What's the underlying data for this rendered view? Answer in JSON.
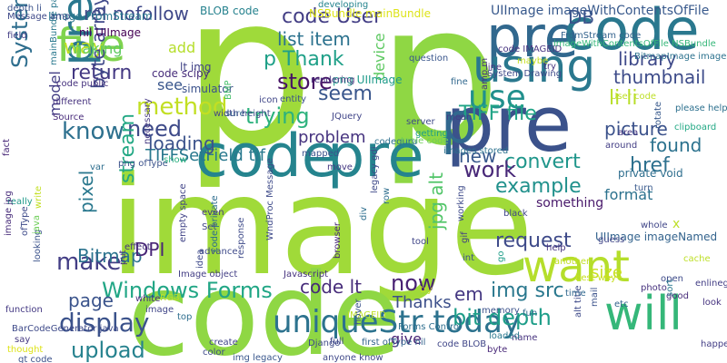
{
  "words": [
    {
      "text": "p",
      "color": "#9fda3a"
    },
    {
      "text": "p",
      "color": "#8fd744"
    },
    {
      "text": "image",
      "color": "#a0da39"
    },
    {
      "text": "code",
      "color": "#8fd744"
    },
    {
      "text": "code",
      "color": "#25848e"
    },
    {
      "text": "pre",
      "color": "#25848e"
    },
    {
      "text": "pre",
      "color": "#3b528b"
    },
    {
      "text": "pre",
      "color": "#31688e"
    },
    {
      "text": "p",
      "color": "#31688e"
    },
    {
      "text": "code",
      "color": "#2a788e"
    },
    {
      "text": "using",
      "color": "#2a788e"
    },
    {
      "text": "file",
      "color": "#7fd34e"
    },
    {
      "text": "want",
      "color": "#b5de2b"
    },
    {
      "text": "will",
      "color": "#35b779"
    },
    {
      "text": "prep",
      "color": "#2a788e"
    },
    {
      "text": "uniqueStr today",
      "color": "#2c728e"
    },
    {
      "text": "use",
      "color": "#21908d"
    },
    {
      "text": "display",
      "color": "#3b528b"
    },
    {
      "text": "Windows Forms",
      "color": "#21a685"
    },
    {
      "text": "upload",
      "color": "#26828e"
    },
    {
      "text": "method",
      "color": "#c2df23"
    },
    {
      "text": "trying",
      "color": "#2db27d"
    },
    {
      "text": "TIFF file",
      "color": "#20a486"
    },
    {
      "text": "make",
      "color": "#433e85"
    },
    {
      "text": "know",
      "color": "#2d708e"
    },
    {
      "text": "now",
      "color": "#482173"
    },
    {
      "text": "example",
      "color": "#21918c"
    },
    {
      "text": "need",
      "color": "#3e4a89"
    },
    {
      "text": "bit depth",
      "color": "#1f9e89"
    },
    {
      "text": "img src",
      "color": "#2a788e"
    },
    {
      "text": "code lt",
      "color": "#472c7a"
    },
    {
      "text": "request",
      "color": "#3e4a89"
    },
    {
      "text": "em",
      "color": "#453882"
    },
    {
      "text": "way",
      "color": "#c2df23"
    },
    {
      "text": "seem",
      "color": "#39568c"
    },
    {
      "text": "store",
      "color": "#471365"
    },
    {
      "text": "stream",
      "color": "#22a884"
    },
    {
      "text": "convert",
      "color": "#1f968b"
    },
    {
      "text": "list item",
      "color": "#2c728e"
    },
    {
      "text": "code User",
      "color": "#433e85"
    },
    {
      "text": "p Thank",
      "color": "#1fa088"
    },
    {
      "text": "return",
      "color": "#443983"
    },
    {
      "text": "System Windows",
      "color": "#2e6e8e"
    },
    {
      "text": "href",
      "color": "#2d708e"
    },
    {
      "text": "new",
      "color": "#38588c"
    },
    {
      "text": "work",
      "color": "#482878"
    },
    {
      "text": "found",
      "color": "#2c728e"
    },
    {
      "text": "li li",
      "color": "#b8de29"
    },
    {
      "text": "DB",
      "color": "#3b528b"
    },
    {
      "text": "library",
      "color": "#3e4989"
    },
    {
      "text": "thumbnail",
      "color": "#3e4c8a"
    },
    {
      "text": "picture",
      "color": "#3b528b"
    },
    {
      "text": "device",
      "color": "#5ec962"
    },
    {
      "text": "pixel",
      "color": "#2a788e"
    },
    {
      "text": "byte array",
      "color": "#3f4889"
    },
    {
      "text": "TIFFSetField tif",
      "color": "#29798e"
    },
    {
      "text": "loading",
      "color": "#3b528b"
    },
    {
      "text": "problem",
      "color": "#46337f"
    },
    {
      "text": "Bitmap",
      "color": "#2c738e"
    },
    {
      "text": "page",
      "color": "#3a538b"
    },
    {
      "text": "DPI",
      "color": "#482576"
    },
    {
      "text": "jpg alt",
      "color": "#52c569"
    },
    {
      "text": "Thanks",
      "color": "#3c4f8a"
    },
    {
      "text": "give",
      "color": "#482475"
    },
    {
      "text": "size",
      "color": "#c8e020"
    },
    {
      "text": "format",
      "color": "#2c728e"
    },
    {
      "text": "something",
      "color": "#48186a"
    },
    {
      "text": "making",
      "color": "#5ec962"
    },
    {
      "text": "add",
      "color": "#b5de2b"
    },
    {
      "text": "see",
      "color": "#39568c"
    },
    {
      "text": "model",
      "color": "#433e85"
    },
    {
      "text": "rel nofollow",
      "color": "#3f4889"
    },
    {
      "text": "x",
      "color": "#bddf26"
    },
    {
      "text": "UIImage imageWithContentsOfFile",
      "color": "#38598c"
    },
    {
      "text": "UIImage imageNamed",
      "color": "#33638d"
    },
    {
      "text": "private void",
      "color": "#2e6e8e"
    },
    {
      "text": "png UIImage",
      "color": "#1e9b8a"
    },
    {
      "text": "lt img",
      "color": "#414487"
    },
    {
      "text": "code scipy",
      "color": "#472d7b"
    },
    {
      "text": "simulator",
      "color": "#3b528b"
    },
    {
      "text": "Image FromStream",
      "color": "#2a778e"
    },
    {
      "text": "nil UIImage",
      "color": "#440154"
    },
    {
      "text": "BLOB code",
      "color": "#26828e"
    },
    {
      "text": "NSBundle mainBundle",
      "color": "#dde318"
    },
    {
      "text": "developing",
      "color": "#25848e"
    },
    {
      "text": "question",
      "color": "#39568c"
    },
    {
      "text": "code IMAGEID",
      "color": "#46337f"
    },
    {
      "text": "imageWithContentsOfFile NSBundle",
      "color": "#35b779"
    },
    {
      "text": "FromStream code",
      "color": "#33638d"
    },
    {
      "text": "BitmapImage image",
      "color": "#2c728e"
    },
    {
      "text": "please help",
      "color": "#2d708e"
    },
    {
      "text": "clipboard",
      "color": "#22a884"
    },
    {
      "text": "area",
      "color": "#453781"
    },
    {
      "text": "around",
      "color": "#433e85"
    },
    {
      "text": "User code",
      "color": "#bddf26"
    },
    {
      "text": "server",
      "color": "#3e4a89"
    },
    {
      "text": "getting",
      "color": "#1f9f88"
    },
    {
      "text": "table code",
      "color": "#6ece58"
    },
    {
      "text": "images stored",
      "color": "#2c728e"
    },
    {
      "text": "mapped",
      "color": "#3b528b"
    },
    {
      "text": "move",
      "color": "#453882"
    },
    {
      "text": "rotate",
      "color": "#38598c"
    },
    {
      "text": "codeguru",
      "color": "#2d708e"
    },
    {
      "text": "rendering",
      "color": "#46327e"
    },
    {
      "text": "entity",
      "color": "#3b528b"
    },
    {
      "text": "icon",
      "color": "#404688"
    },
    {
      "text": "sure",
      "color": "#31688e"
    },
    {
      "text": "width height",
      "color": "#3f4889"
    },
    {
      "text": "JQuery",
      "color": "#404588"
    },
    {
      "text": "different",
      "color": "#46327e"
    },
    {
      "text": "Source",
      "color": "#472a7a"
    },
    {
      "text": "mainBundle pathForResource",
      "color": "#2a788e"
    },
    {
      "text": "code public",
      "color": "#46327e"
    },
    {
      "text": "BMP",
      "color": "#4ac16d"
    },
    {
      "text": "Message amp",
      "color": "#3e4989"
    },
    {
      "text": "depth li",
      "color": "#3b528b"
    },
    {
      "text": "field",
      "color": "#433e85"
    },
    {
      "text": "fact",
      "color": "#482878"
    },
    {
      "text": "really",
      "color": "#1f9a8a"
    },
    {
      "text": "function",
      "color": "#443983"
    },
    {
      "text": "image jpg",
      "color": "#472c7a"
    },
    {
      "text": "BarCodeGenerator java",
      "color": "#3e4a89"
    },
    {
      "text": "thought",
      "color": "#dde318"
    },
    {
      "text": "gt code",
      "color": "#3b528b"
    },
    {
      "text": "say",
      "color": "#453882"
    },
    {
      "text": "looking",
      "color": "#3b528b"
    },
    {
      "text": "ofType",
      "color": "#3e4a89"
    },
    {
      "text": "java",
      "color": "#6ece58"
    },
    {
      "text": "write",
      "color": "#c2df23"
    },
    {
      "text": "var",
      "color": "#2e6e8e"
    },
    {
      "text": "png ofType",
      "color": "#3b528b"
    },
    {
      "text": "put",
      "color": "#46327e"
    },
    {
      "text": "necessary",
      "color": "#453882"
    },
    {
      "text": "show",
      "color": "#29af7f"
    },
    {
      "text": "empty space",
      "color": "#414487"
    },
    {
      "text": "advance",
      "color": "#3e4a89"
    },
    {
      "text": "effect",
      "color": "#46337f"
    },
    {
      "text": "Image object",
      "color": "#433e85"
    },
    {
      "text": "white",
      "color": "#472f7d"
    },
    {
      "text": "RGB",
      "color": "#b8de29"
    },
    {
      "text": "image",
      "color": "#404688"
    },
    {
      "text": "top",
      "color": "#2e6e8e"
    },
    {
      "text": "color",
      "color": "#3e4a89"
    },
    {
      "text": "create",
      "color": "#404688"
    },
    {
      "text": "img legacy",
      "color": "#39568c"
    },
    {
      "text": "anyone know",
      "color": "#3f4889"
    },
    {
      "text": "full",
      "color": "#404688"
    },
    {
      "text": "IMAGEID",
      "color": "#bddf26"
    },
    {
      "text": "hover",
      "color": "#3b528b"
    },
    {
      "text": "Django",
      "color": "#3e4a89"
    },
    {
      "text": "legacy gdi",
      "color": "#3e4989"
    },
    {
      "text": "row",
      "color": "#2e6e8e"
    },
    {
      "text": "working",
      "color": "#3e4a89"
    },
    {
      "text": "browser",
      "color": "#482878"
    },
    {
      "text": "Javascript",
      "color": "#46327e"
    },
    {
      "text": "WndProc Message",
      "color": "#3e4a89"
    },
    {
      "text": "response",
      "color": "#3e4a89"
    },
    {
      "text": "code private",
      "color": "#2e6e8e"
    },
    {
      "text": "idea",
      "color": "#3e4989"
    },
    {
      "text": "Set",
      "color": "#404688"
    },
    {
      "text": "even",
      "color": "#453882"
    },
    {
      "text": "first ofType nil",
      "color": "#33638d"
    },
    {
      "text": "code BLOB",
      "color": "#404688"
    },
    {
      "text": "Forms Control",
      "color": "#2e6e8e"
    },
    {
      "text": "byte",
      "color": "#482878"
    },
    {
      "text": "try",
      "color": "#c2df23"
    },
    {
      "text": "name",
      "color": "#46327e"
    },
    {
      "text": "loaded",
      "color": "#2a788e"
    },
    {
      "text": "memory",
      "color": "#3b528b"
    },
    {
      "text": "fun",
      "color": "#31688e"
    },
    {
      "text": "photo",
      "color": "#46327e"
    },
    {
      "text": "etc",
      "color": "#33638d"
    },
    {
      "text": "good",
      "color": "#472c7a"
    },
    {
      "text": "alt title",
      "color": "#3e4a89"
    },
    {
      "text": "mail",
      "color": "#3b528b"
    },
    {
      "text": "help",
      "color": "#46337f"
    },
    {
      "text": "time",
      "color": "#31688e"
    },
    {
      "text": "best way",
      "color": "#c8e020"
    },
    {
      "text": "another",
      "color": "#c2df23"
    },
    {
      "text": "go",
      "color": "#1f9e89"
    },
    {
      "text": "gif",
      "color": "#433e85"
    },
    {
      "text": "div",
      "color": "#2e6e8e"
    },
    {
      "text": "tool",
      "color": "#404688"
    },
    {
      "text": "int",
      "color": "#3b528b"
    },
    {
      "text": "black",
      "color": "#404688"
    },
    {
      "text": "turn",
      "color": "#38598c"
    },
    {
      "text": "whole",
      "color": "#404688"
    },
    {
      "text": "guess",
      "color": "#404688"
    },
    {
      "text": "enlinegraphics",
      "color": "#433e85"
    },
    {
      "text": "cache",
      "color": "#bddf26"
    },
    {
      "text": "open",
      "color": "#3e4a89"
    },
    {
      "text": "sort",
      "color": "#2a788e"
    },
    {
      "text": "look",
      "color": "#46337f"
    },
    {
      "text": "happen",
      "color": "#433e85"
    },
    {
      "text": "mean",
      "color": "#433e85"
    },
    {
      "text": "amp m",
      "color": "#46327e"
    },
    {
      "text": "fine",
      "color": "#31688e"
    },
    {
      "text": "line",
      "color": "#46327e"
    },
    {
      "text": "System Drawing",
      "color": "#3e4a89"
    },
    {
      "text": "maybe",
      "color": "#c8e020"
    },
    {
      "text": "try",
      "color": "#46327e"
    }
  ]
}
